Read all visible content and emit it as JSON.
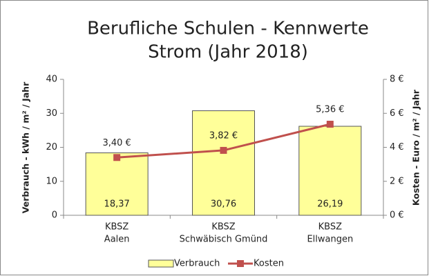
{
  "chart_data": {
    "type": "bar",
    "title": [
      "Berufliche Schulen - Kennwerte",
      "Strom (Jahr 2018)"
    ],
    "categories": [
      [
        "KBSZ",
        "Aalen"
      ],
      [
        "KBSZ",
        "Schwäbisch Gmünd"
      ],
      [
        "KBSZ",
        "Ellwangen"
      ]
    ],
    "y_label": "Verbrauch - kWh / m² / Jahr",
    "y2_label": "Kosten - Euro / m² / Jahr",
    "series": [
      {
        "name": "Verbrauch",
        "type": "bar",
        "color": "#ffff99",
        "values": [
          18.37,
          30.76,
          26.19
        ],
        "value_labels": [
          "18,37",
          "30,76",
          "26,19"
        ]
      },
      {
        "name": "Kosten",
        "type": "line",
        "axis": "y2",
        "color": "#c0504d",
        "values": [
          3.4,
          3.82,
          5.36
        ],
        "value_labels": [
          "3,40 €",
          "3,82 €",
          "5,36 €"
        ]
      }
    ],
    "ylim": [
      0,
      40
    ],
    "yticks": [
      0,
      10,
      20,
      30,
      40
    ],
    "y2lim": [
      0,
      8
    ],
    "y2ticks": [
      {
        "value": 0,
        "label": "0 €"
      },
      {
        "value": 2,
        "label": "2 €"
      },
      {
        "value": 4,
        "label": "4 €"
      },
      {
        "value": 6,
        "label": "6 €"
      },
      {
        "value": 8,
        "label": "8 €"
      }
    ],
    "grid": false,
    "legend": "bottom"
  }
}
